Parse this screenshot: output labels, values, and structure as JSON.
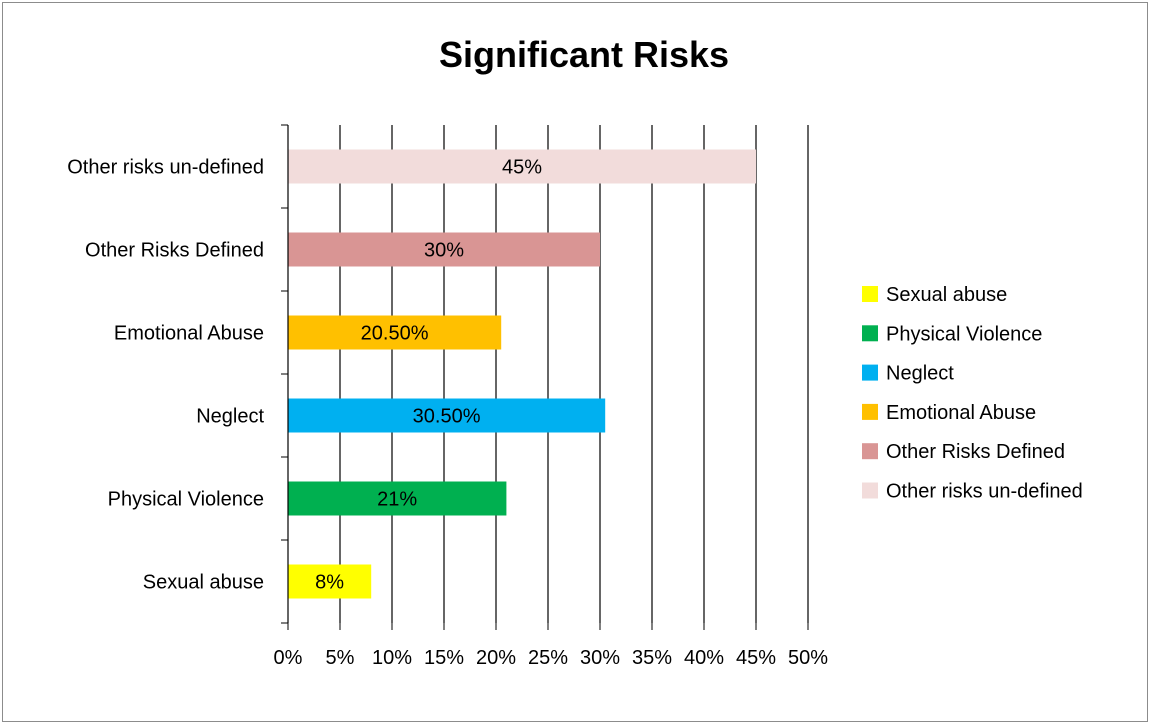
{
  "chart_data": {
    "type": "bar",
    "orientation": "horizontal",
    "title": "Significant Risks",
    "categories": [
      "Sexual abuse",
      "Physical Violence",
      "Neglect",
      "Emotional Abuse",
      "Other Risks Defined",
      "Other risks un-defined"
    ],
    "values": [
      8,
      21,
      30.5,
      20.5,
      30,
      45
    ],
    "data_labels": [
      "8%",
      "21%",
      "30.50%",
      "20.50%",
      "30%",
      "45%"
    ],
    "colors": [
      "#ffff00",
      "#00b050",
      "#00b0f0",
      "#ffc000",
      "#d99594",
      "#f2dcdb"
    ],
    "xlim": [
      0,
      50
    ],
    "x_ticks": [
      "0%",
      "5%",
      "10%",
      "15%",
      "20%",
      "25%",
      "30%",
      "35%",
      "40%",
      "45%",
      "50%"
    ],
    "grid": true,
    "legend": {
      "position": "right",
      "entries": [
        "Sexual abuse",
        "Physical Violence",
        "Neglect",
        "Emotional Abuse",
        "Other Risks Defined",
        "Other risks un-defined"
      ]
    }
  }
}
